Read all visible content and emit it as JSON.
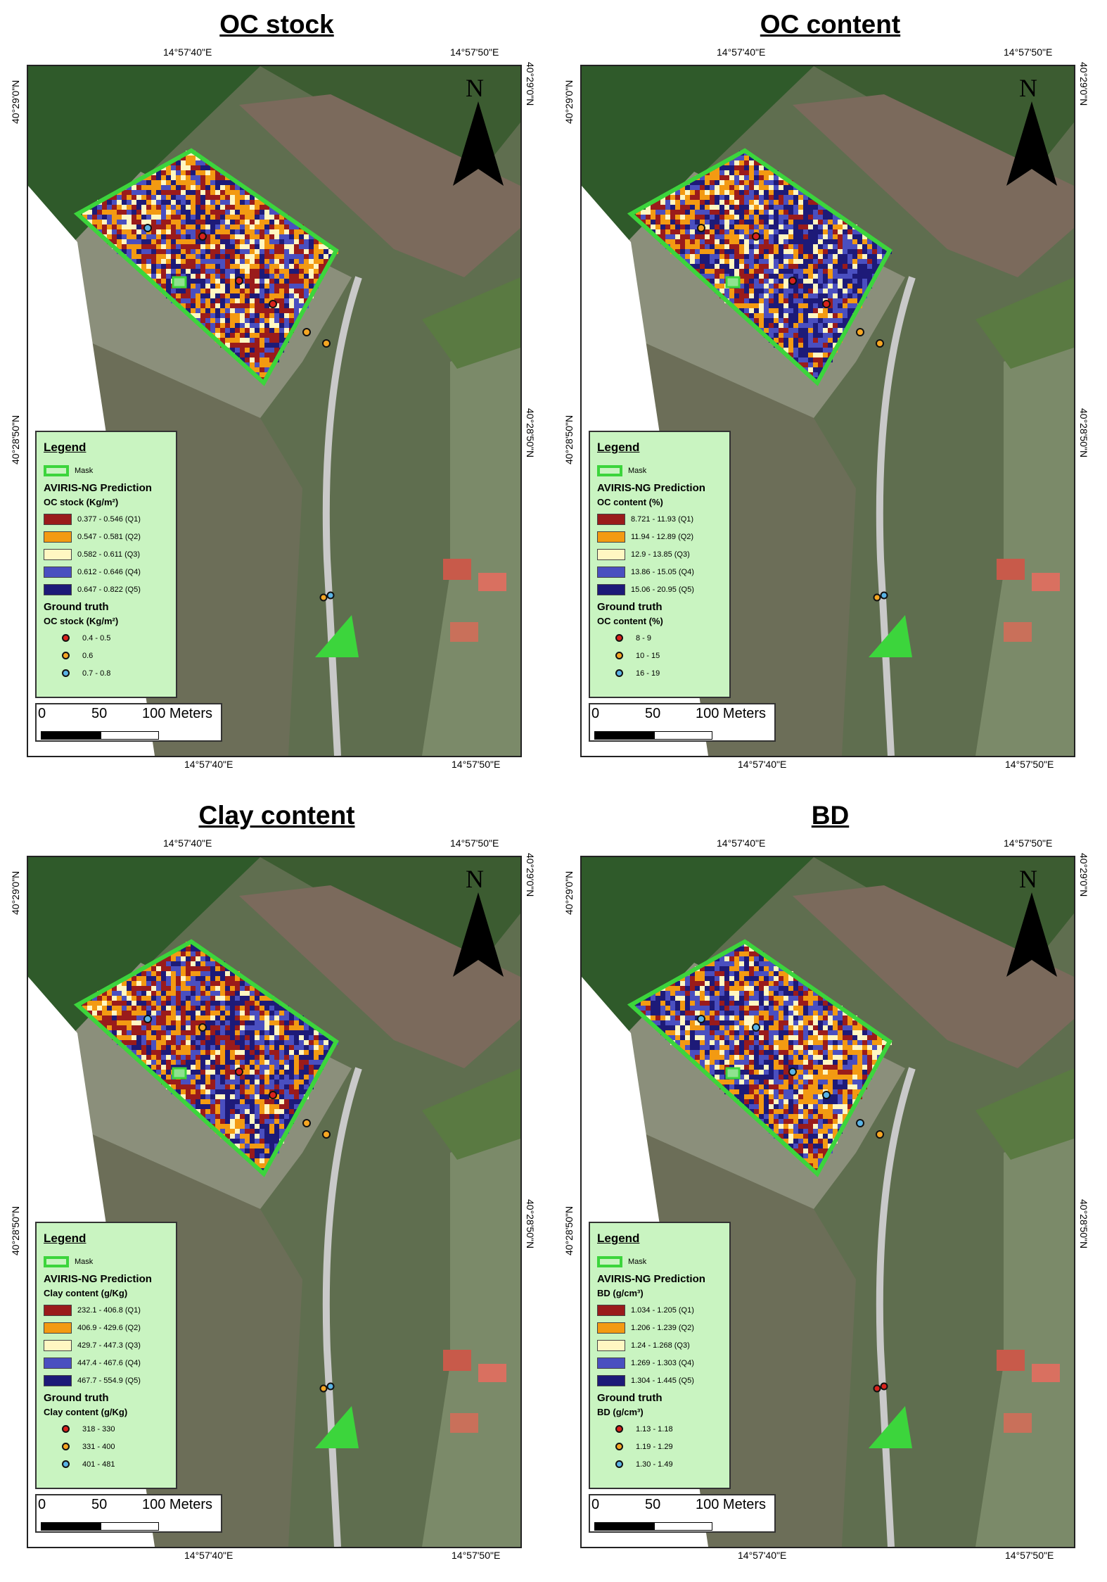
{
  "coords": {
    "lon_left": "14°57'40\"E",
    "lon_right": "14°57'50\"E",
    "lat_top": "40°29'0\"N",
    "lat_bottom": "40°28'50\"N"
  },
  "north_label": "N",
  "scale": {
    "zero": "0",
    "mid": "50",
    "end": "100 Meters"
  },
  "legend_common": {
    "title": "Legend",
    "mask_label": "Mask",
    "prediction_heading": "AVIRIS-NG Prediction",
    "ground_truth_heading": "Ground truth"
  },
  "colors": {
    "q1": "#9a1b1b",
    "q2": "#f39a12",
    "q3": "#fff7c2",
    "q4": "#4a4fc0",
    "q5": "#1d1a78",
    "mask": "#3cd53c",
    "gt_low": "#d9231d",
    "gt_mid": "#f5a623",
    "gt_high": "#5ab4e6"
  },
  "panels": [
    {
      "title": "OC stock",
      "pred_unit": "OC stock (Kg/m²)",
      "classes": [
        "0.377 - 0.546 (Q1)",
        "0.547 - 0.581 (Q2)",
        "0.582 - 0.611 (Q3)",
        "0.612 - 0.646 (Q4)",
        "0.647 - 0.822 (Q5)"
      ],
      "gt_unit": "OC stock (Kg/m²)",
      "gt_classes": [
        "0.4 - 0.5",
        "0.6",
        "0.7 - 0.8"
      ]
    },
    {
      "title": "OC content",
      "pred_unit": "OC content (%)",
      "classes": [
        "8.721 - 11.93 (Q1)",
        "11.94 - 12.89 (Q2)",
        "12.9 - 13.85 (Q3)",
        "13.86 - 15.05 (Q4)",
        "15.06 - 20.95 (Q5)"
      ],
      "gt_unit": "OC content (%)",
      "gt_classes": [
        "8 - 9",
        "10 - 15",
        "16 - 19"
      ]
    },
    {
      "title": "Clay content",
      "pred_unit": "Clay content (g/Kg)",
      "classes": [
        "232.1 - 406.8 (Q1)",
        "406.9 - 429.6 (Q2)",
        "429.7 - 447.3 (Q3)",
        "447.4 - 467.6 (Q4)",
        "467.7 - 554.9 (Q5)"
      ],
      "gt_unit": "Clay content (g/Kg)",
      "gt_classes": [
        "318 - 330",
        "331 - 400",
        "401 - 481"
      ]
    },
    {
      "title": "BD",
      "pred_unit": "BD (g/cm³)",
      "classes": [
        "1.034 - 1.205 (Q1)",
        "1.206 - 1.239 (Q2)",
        "1.24 - 1.268 (Q3)",
        "1.269 - 1.303 (Q4)",
        "1.304 - 1.445 (Q5)"
      ],
      "gt_unit": "BD (g/cm³)",
      "gt_classes": [
        "1.13 - 1.18",
        "1.19 - 1.29",
        "1.30 - 1.49"
      ]
    }
  ]
}
